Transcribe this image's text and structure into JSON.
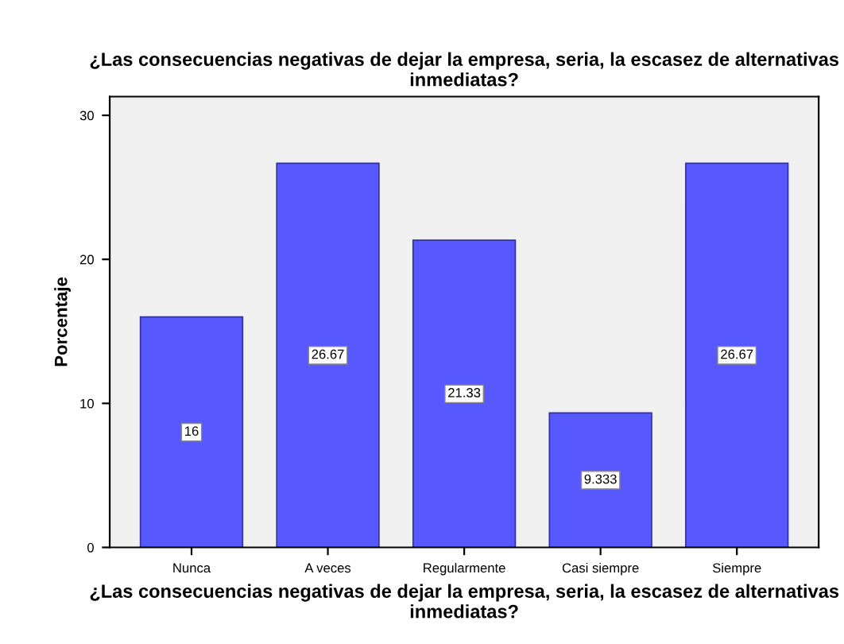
{
  "chart_data": {
    "type": "bar",
    "title": "¿Las consecuencias negativas de dejar la empresa, seria, la escasez de alternativas inmediatas?",
    "xlabel": "¿Las consecuencias negativas de dejar la empresa, seria, la escasez de alternativas inmediatas?",
    "ylabel": "Porcentaje",
    "categories": [
      "Nunca",
      "A veces",
      "Regularmente",
      "Casi siempre",
      "Siempre"
    ],
    "values": [
      16,
      26.67,
      21.33,
      9.333,
      26.67
    ],
    "color": "#5858ff",
    "ylim": [
      0,
      31.3
    ],
    "yticks": [
      0,
      10,
      20,
      30
    ],
    "grid": false,
    "data_labels": true
  }
}
